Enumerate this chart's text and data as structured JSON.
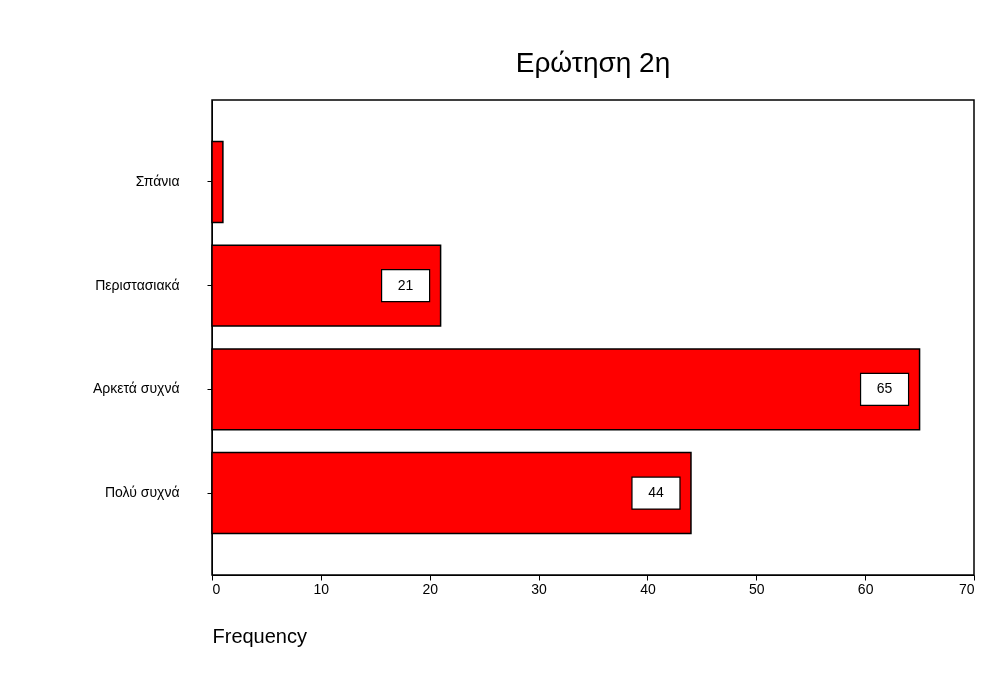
{
  "chart_data": {
    "type": "bar",
    "orientation": "horizontal",
    "title": "Ερώτηση 2η",
    "xlabel": "Frequency",
    "categories": [
      "Σπάνια",
      "Περιστασιακά",
      "Αρκετά συχνά",
      "Πολύ συχνά"
    ],
    "values": [
      1,
      21,
      65,
      44
    ],
    "value_labels": [
      null,
      "21",
      "65",
      "44"
    ],
    "color": "#ff0000",
    "xlim": [
      0,
      70
    ],
    "xticks": [
      0,
      10,
      20,
      30,
      40,
      50,
      60,
      70
    ],
    "grid": false
  }
}
